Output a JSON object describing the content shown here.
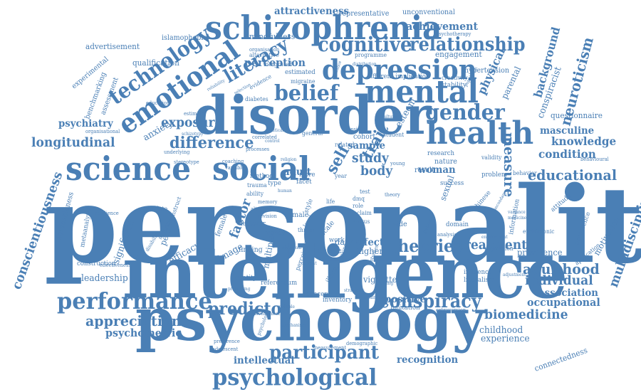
{
  "cloud": {
    "color": "#4a7fb5",
    "background": "#ffffff",
    "words": [
      {
        "text": "personality",
        "weight": 100,
        "rotation": 0
      },
      {
        "text": "intelligence",
        "weight": 82,
        "rotation": 0
      },
      {
        "text": "psychology",
        "weight": 76,
        "rotation": 0
      },
      {
        "text": "disorder",
        "weight": 72,
        "rotation": 0
      },
      {
        "text": "schizophrenia",
        "weight": 46,
        "rotation": 0
      },
      {
        "text": "science",
        "weight": 44,
        "rotation": 0
      },
      {
        "text": "social",
        "weight": 44,
        "rotation": 0
      },
      {
        "text": "mental",
        "weight": 42,
        "rotation": 0
      },
      {
        "text": "depression",
        "weight": 40,
        "rotation": 0
      },
      {
        "text": "health",
        "weight": 40,
        "rotation": 0
      },
      {
        "text": "emotional",
        "weight": 38,
        "rotation": -35
      },
      {
        "text": "psychological",
        "weight": 32,
        "rotation": 0
      },
      {
        "text": "performance",
        "weight": 32,
        "rotation": 0
      },
      {
        "text": "technology",
        "weight": 30,
        "rotation": -35
      },
      {
        "text": "gender",
        "weight": 30,
        "rotation": 0
      },
      {
        "text": "belief",
        "weight": 30,
        "rotation": 0
      },
      {
        "text": "cognitive",
        "weight": 28,
        "rotation": 0
      },
      {
        "text": "relationship",
        "weight": 26,
        "rotation": 0
      },
      {
        "text": "literacy",
        "weight": 26,
        "rotation": -30
      },
      {
        "text": "participant",
        "weight": 26,
        "rotation": 0
      },
      {
        "text": "conspiracy",
        "weight": 26,
        "rotation": 0
      },
      {
        "text": "theories",
        "weight": 24,
        "rotation": 0
      },
      {
        "text": "predictor",
        "weight": 24,
        "rotation": 0
      },
      {
        "text": "difference",
        "weight": 22,
        "rotation": 0
      },
      {
        "text": "trait",
        "weight": 22,
        "rotation": -60
      },
      {
        "text": "self",
        "weight": 22,
        "rotation": -60
      },
      {
        "text": "educational",
        "weight": 20,
        "rotation": 0
      },
      {
        "text": "adulthood",
        "weight": 20,
        "rotation": 0
      },
      {
        "text": "appreciation",
        "weight": 20,
        "rotation": 0
      },
      {
        "text": "measure",
        "weight": 20,
        "rotation": 90
      },
      {
        "text": "neuroticism",
        "weight": 20,
        "rotation": -75
      },
      {
        "text": "conscientiousness",
        "weight": 18,
        "rotation": -70
      },
      {
        "text": "multidisciplinary",
        "weight": 18,
        "rotation": -70
      },
      {
        "text": "exposure",
        "weight": 18,
        "rotation": 0
      },
      {
        "text": "longitudinal",
        "weight": 18,
        "rotation": 0
      },
      {
        "text": "biomedicine",
        "weight": 18,
        "rotation": 0
      },
      {
        "text": "treatment",
        "weight": 18,
        "rotation": 0
      },
      {
        "text": "individual",
        "weight": 18,
        "rotation": 0
      },
      {
        "text": "study",
        "weight": 18,
        "rotation": 0
      },
      {
        "text": "body",
        "weight": 18,
        "rotation": 0
      },
      {
        "text": "factor",
        "weight": 18,
        "rotation": -70
      },
      {
        "text": "physical",
        "weight": 16,
        "rotation": -65
      },
      {
        "text": "background",
        "weight": 16,
        "rotation": -75
      },
      {
        "text": "knowledge",
        "weight": 16,
        "rotation": 0
      },
      {
        "text": "condition",
        "weight": 16,
        "rotation": 0
      },
      {
        "text": "psychometric",
        "weight": 15,
        "rotation": 0
      },
      {
        "text": "occupational",
        "weight": 15,
        "rotation": 0
      },
      {
        "text": "achievement",
        "weight": 15,
        "rotation": 0
      },
      {
        "text": "perception",
        "weight": 15,
        "rotation": 0
      },
      {
        "text": "attractiveness",
        "weight": 14,
        "rotation": 0
      },
      {
        "text": "intellectual",
        "weight": 14,
        "rotation": 0
      },
      {
        "text": "recognition",
        "weight": 14,
        "rotation": 0
      },
      {
        "text": "association",
        "weight": 14,
        "rotation": 0
      },
      {
        "text": "sample",
        "weight": 14,
        "rotation": 0
      },
      {
        "text": "masculine",
        "weight": 14,
        "rotation": 0
      },
      {
        "text": "woman",
        "weight": 14,
        "rotation": 0
      },
      {
        "text": "adult",
        "weight": 14,
        "rotation": 0
      },
      {
        "text": "positive",
        "weight": 14,
        "rotation": 0
      },
      {
        "text": "effect",
        "weight": 14,
        "rotation": 0
      },
      {
        "text": "psychiatry",
        "weight": 14,
        "rotation": 0
      },
      {
        "text": "leadership",
        "weight": 13,
        "rotation": 0
      },
      {
        "text": "anxiety",
        "weight": 13,
        "rotation": -30
      },
      {
        "text": "efficacy",
        "weight": 13,
        "rotation": -30
      },
      {
        "text": "image",
        "weight": 13,
        "rotation": -30
      },
      {
        "text": "experience",
        "weight": 13,
        "rotation": 0
      },
      {
        "text": "childhood",
        "weight": 13,
        "rotation": 0
      },
      {
        "text": "esteem",
        "weight": 13,
        "rotation": -60
      },
      {
        "text": "conspiracist",
        "weight": 13,
        "rotation": -70
      },
      {
        "text": "significant",
        "weight": 13,
        "rotation": -70
      },
      {
        "text": "person",
        "weight": 12,
        "rotation": -70
      },
      {
        "text": "higher",
        "weight": 12,
        "rotation": 0
      },
      {
        "text": "cause",
        "weight": 12,
        "rotation": 0
      },
      {
        "text": "dark",
        "weight": 12,
        "rotation": 0
      },
      {
        "text": "multiple",
        "weight": 12,
        "rotation": -80
      },
      {
        "text": "parental",
        "weight": 12,
        "rotation": -65
      },
      {
        "text": "sexual",
        "weight": 12,
        "rotation": -70
      },
      {
        "text": "prevalence",
        "weight": 12,
        "rotation": 0
      },
      {
        "text": "motivation",
        "weight": 12,
        "rotation": -60
      },
      {
        "text": "connectedness",
        "weight": 11,
        "rotation": -20
      },
      {
        "text": "vignette",
        "weight": 12,
        "rotation": 0
      },
      {
        "text": "questionnaire",
        "weight": 11,
        "rotation": 0
      },
      {
        "text": "qualification",
        "weight": 11,
        "rotation": 0
      },
      {
        "text": "advertisement",
        "weight": 11,
        "rotation": 0
      },
      {
        "text": "mindfulness",
        "weight": 11,
        "rotation": 0
      },
      {
        "text": "engagement",
        "weight": 11,
        "rotation": 0
      },
      {
        "text": "hypertension",
        "weight": 10,
        "rotation": 0
      },
      {
        "text": "unconventional",
        "weight": 10,
        "rotation": 0
      },
      {
        "text": "representative",
        "weight": 10,
        "rotation": 0
      },
      {
        "text": "islamophobia",
        "weight": 10,
        "rotation": 0
      },
      {
        "text": "experimental",
        "weight": 10,
        "rotation": -40
      },
      {
        "text": "assessment",
        "weight": 10,
        "rotation": -70
      },
      {
        "text": "benchmarking",
        "weight": 10,
        "rotation": -70
      },
      {
        "text": "agreeableness",
        "weight": 10,
        "rotation": -75
      },
      {
        "text": "metaanalysis",
        "weight": 9,
        "rotation": -80
      },
      {
        "text": "construction",
        "weight": 9,
        "rotation": 0
      },
      {
        "text": "finding",
        "weight": 10,
        "rotation": 0
      },
      {
        "text": "identity",
        "weight": 9,
        "rotation": 0
      },
      {
        "text": "referendum",
        "weight": 9,
        "rotation": 0
      },
      {
        "text": "concept",
        "weight": 9,
        "rotation": 0
      },
      {
        "text": "inventory",
        "weight": 9,
        "rotation": 0
      },
      {
        "text": "limitation",
        "weight": 9,
        "rotation": 0
      },
      {
        "text": "illness",
        "weight": 9,
        "rotation": -60
      },
      {
        "text": "perceived",
        "weight": 9,
        "rotation": -70
      },
      {
        "text": "work",
        "weight": 9,
        "rotation": 0
      },
      {
        "text": "side",
        "weight": 10,
        "rotation": 0
      },
      {
        "text": "scale",
        "weight": 10,
        "rotation": -50
      },
      {
        "text": "male",
        "weight": 10,
        "rotation": 0
      },
      {
        "text": "female",
        "weight": 10,
        "rotation": -70
      },
      {
        "text": "lecturer",
        "weight": 9,
        "rotation": 0
      },
      {
        "text": "money",
        "weight": 9,
        "rotation": 0
      },
      {
        "text": "facet",
        "weight": 9,
        "rotation": 0
      },
      {
        "text": "type",
        "weight": 9,
        "rotation": 0
      },
      {
        "text": "method",
        "weight": 9,
        "rotation": 0
      },
      {
        "text": "ability",
        "weight": 8,
        "rotation": 0
      },
      {
        "text": "trauma",
        "weight": 8,
        "rotation": 0
      },
      {
        "text": "more",
        "weight": 9,
        "rotation": 0
      },
      {
        "text": "result",
        "weight": 10,
        "rotation": 0
      },
      {
        "text": "nature",
        "weight": 10,
        "rotation": 0
      },
      {
        "text": "cohort",
        "weight": 10,
        "rotation": 0
      },
      {
        "text": "related",
        "weight": 8,
        "rotation": 0
      },
      {
        "text": "general",
        "weight": 8,
        "rotation": 0
      },
      {
        "text": "student",
        "weight": 8,
        "rotation": 0
      },
      {
        "text": "research",
        "weight": 9,
        "rotation": 0
      },
      {
        "text": "success",
        "weight": 9,
        "rotation": 0
      },
      {
        "text": "domain",
        "weight": 9,
        "rotation": 0
      },
      {
        "text": "problem",
        "weight": 9,
        "rotation": 0
      },
      {
        "text": "behavior",
        "weight": 8,
        "rotation": 0
      },
      {
        "text": "validity",
        "weight": 8,
        "rotation": 0
      },
      {
        "text": "attitude",
        "weight": 9,
        "rotation": -40
      },
      {
        "text": "information",
        "weight": 9,
        "rotation": -80
      },
      {
        "text": "occurrence",
        "weight": 9,
        "rotation": -70
      },
      {
        "text": "application",
        "weight": 8,
        "rotation": -40
      },
      {
        "text": "eudaimonic",
        "weight": 8,
        "rotation": 0
      },
      {
        "text": "regression",
        "weight": 8,
        "rotation": 0
      },
      {
        "text": "influence",
        "weight": 9,
        "rotation": 0
      },
      {
        "text": "liberalism",
        "weight": 9,
        "rotation": 0
      },
      {
        "text": "chinese",
        "weight": 9,
        "rotation": -50
      },
      {
        "text": "stability",
        "weight": 9,
        "rotation": 0
      },
      {
        "text": "creativity",
        "weight": 8,
        "rotation": 0
      },
      {
        "text": "implication",
        "weight": 9,
        "rotation": 0
      },
      {
        "text": "different",
        "weight": 9,
        "rotation": 0
      },
      {
        "text": "programme",
        "weight": 8,
        "rotation": 0
      },
      {
        "text": "estimated",
        "weight": 9,
        "rotation": 0
      },
      {
        "text": "integrated",
        "weight": 8,
        "rotation": 0
      },
      {
        "text": "migraine",
        "weight": 8,
        "rotation": 0
      },
      {
        "text": "diabetes",
        "weight": 8,
        "rotation": 0
      },
      {
        "text": "evidence",
        "weight": 8,
        "rotation": -30
      },
      {
        "text": "alternative",
        "weight": 8,
        "rotation": 0
      },
      {
        "text": "organisation",
        "weight": 7,
        "rotation": 0
      },
      {
        "text": "psychotherapy",
        "weight": 7,
        "rotation": 0
      },
      {
        "text": "education",
        "weight": 7,
        "rotation": 0
      },
      {
        "text": "organisational",
        "weight": 7,
        "rotation": 0
      },
      {
        "text": "estimate",
        "weight": 7,
        "rotation": 0
      },
      {
        "text": "correlate",
        "weight": 8,
        "rotation": 0
      },
      {
        "text": "construct",
        "weight": 8,
        "rotation": -70
      },
      {
        "text": "resilience",
        "weight": 7,
        "rotation": 0
      },
      {
        "text": "mortality",
        "weight": 7,
        "rotation": -60
      },
      {
        "text": "disability",
        "weight": 7,
        "rotation": -60
      },
      {
        "text": "effectiveness",
        "weight": 7,
        "rotation": 0
      },
      {
        "text": "processes",
        "weight": 7,
        "rotation": 0
      },
      {
        "text": "correlated",
        "weight": 7,
        "rotation": 0
      },
      {
        "text": "variable",
        "weight": 7,
        "rotation": 0
      },
      {
        "text": "coaching",
        "weight": 7,
        "rotation": 0
      },
      {
        "text": "stereotype",
        "weight": 7,
        "rotation": 0
      },
      {
        "text": "underlying",
        "weight": 7,
        "rotation": 0
      },
      {
        "text": "altruism",
        "weight": 7,
        "rotation": 0
      },
      {
        "text": "revision",
        "weight": 7,
        "rotation": 0
      },
      {
        "text": "memory",
        "weight": 7,
        "rotation": 0
      },
      {
        "text": "style",
        "weight": 9,
        "rotation": -70
      },
      {
        "text": "level",
        "weight": 8,
        "rotation": -60
      },
      {
        "text": "threat",
        "weight": 8,
        "rotation": 0
      },
      {
        "text": "claim",
        "weight": 8,
        "rotation": 0
      },
      {
        "text": "status",
        "weight": 8,
        "rotation": 0
      },
      {
        "text": "role",
        "weight": 8,
        "rotation": 0
      },
      {
        "text": "dmq",
        "weight": 8,
        "rotation": 0
      },
      {
        "text": "test",
        "weight": 8,
        "rotation": 0
      },
      {
        "text": "life",
        "weight": 8,
        "rotation": 0
      },
      {
        "text": "theory",
        "weight": 7,
        "rotation": 0
      },
      {
        "text": "score",
        "weight": 7,
        "rotation": 0
      },
      {
        "text": "year",
        "weight": 8,
        "rotation": 0
      },
      {
        "text": "young",
        "weight": 7,
        "rotation": 0
      },
      {
        "text": "insight",
        "weight": 7,
        "rotation": 0
      },
      {
        "text": "thinking",
        "weight": 7,
        "rotation": -70
      },
      {
        "text": "studies",
        "weight": 7,
        "rotation": -70
      },
      {
        "text": "distance",
        "weight": 7,
        "rotation": -70
      },
      {
        "text": "adolescent",
        "weight": 7,
        "rotation": 0
      },
      {
        "text": "preference",
        "weight": 7,
        "rotation": 0
      },
      {
        "text": "demographic",
        "weight": 7,
        "rotation": 0
      },
      {
        "text": "measurement",
        "weight": 7,
        "rotation": 0
      },
      {
        "text": "extraversion",
        "weight": 7,
        "rotation": 0
      },
      {
        "text": "adjustment",
        "weight": 6,
        "rotation": 0
      },
      {
        "text": "behavioural",
        "weight": 7,
        "rotation": 0
      },
      {
        "text": "environment",
        "weight": 6,
        "rotation": 0
      },
      {
        "text": "analysis",
        "weight": 7,
        "rotation": 0
      },
      {
        "text": "population",
        "weight": 6,
        "rotation": -60
      },
      {
        "text": "distribution",
        "weight": 6,
        "rotation": 0
      },
      {
        "text": "tolerance",
        "weight": 6,
        "rotation": -70
      },
      {
        "text": "selection",
        "weight": 6,
        "rotation": -30
      },
      {
        "text": "reliability",
        "weight": 6,
        "rotation": -30
      },
      {
        "text": "psychology",
        "weight": 7,
        "rotation": -70
      },
      {
        "text": "current",
        "weight": 6,
        "rotation": 0
      },
      {
        "text": "political",
        "weight": 6,
        "rotation": 0
      },
      {
        "text": "control",
        "weight": 6,
        "rotation": 0
      },
      {
        "text": "religion",
        "weight": 6,
        "rotation": 0
      },
      {
        "text": "human",
        "weight": 6,
        "rotation": 0
      },
      {
        "text": "cultural",
        "weight": 6,
        "rotation": 0
      },
      {
        "text": "schizotypy",
        "weight": 6,
        "rotation": 0
      },
      {
        "text": "processing",
        "weight": 6,
        "rotation": 0
      },
      {
        "text": "development",
        "weight": 6,
        "rotation": 0
      },
      {
        "text": "attainment",
        "weight": 6,
        "rotation": 0
      },
      {
        "text": "nursing",
        "weight": 6,
        "rotation": 0
      },
      {
        "text": "strategies",
        "weight": 6,
        "rotation": 0
      },
      {
        "text": "variance",
        "weight": 6,
        "rotation": 0
      },
      {
        "text": "secondary",
        "weight": 6,
        "rotation": -60
      },
      {
        "text": "medicine",
        "weight": 6,
        "rotation": 0
      },
      {
        "text": "multiple",
        "weight": 6,
        "rotation": 0
      },
      {
        "text": "cluster",
        "weight": 6,
        "rotation": 0
      },
      {
        "text": "abnormal",
        "weight": 6,
        "rotation": 0
      },
      {
        "text": "mechanism",
        "weight": 6,
        "rotation": 0
      }
    ]
  }
}
